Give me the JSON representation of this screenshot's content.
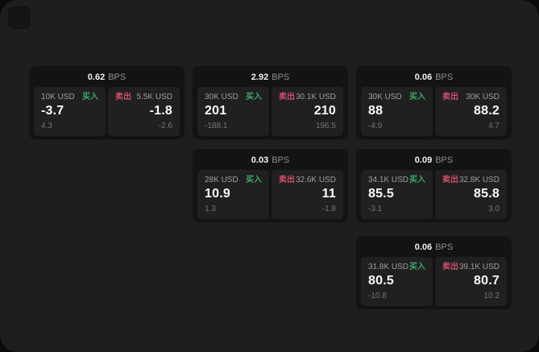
{
  "theme": {
    "outer_background": "#0b0b0b",
    "page_background": "#1e1e1e",
    "card_background": "#131313",
    "tile_background": "#202020",
    "buy_color": "#3fa868",
    "sell_color": "#cf506b",
    "value_color": "#fafafa",
    "muted_text": "#9e9e9e"
  },
  "labels": {
    "bps": "BPS",
    "buy": "买入",
    "sell": "卖出"
  },
  "cards": [
    {
      "spread_bps": "0.62",
      "buy": {
        "size": "10K USD",
        "price": "-3.7",
        "delta": "4.3"
      },
      "sell": {
        "size": "5.5K USD",
        "price": "-1.8",
        "delta": "-2.6"
      }
    },
    {
      "spread_bps": "2.92",
      "buy": {
        "size": "30K USD",
        "price": "201",
        "delta": "-188.1"
      },
      "sell": {
        "size": "30.1K USD",
        "price": "210",
        "delta": "196.5"
      }
    },
    {
      "spread_bps": "0.06",
      "buy": {
        "size": "30K USD",
        "price": "88",
        "delta": "-4.9"
      },
      "sell": {
        "size": "30K USD",
        "price": "88.2",
        "delta": "4.7"
      }
    },
    {
      "spread_bps": "0.03",
      "buy": {
        "size": "28K USD",
        "price": "10.9",
        "delta": "1.3"
      },
      "sell": {
        "size": "32.6K USD",
        "price": "11",
        "delta": "-1.8"
      }
    },
    {
      "spread_bps": "0.09",
      "buy": {
        "size": "34.1K USD",
        "price": "85.5",
        "delta": "-3.1"
      },
      "sell": {
        "size": "32.8K USD",
        "price": "85.8",
        "delta": "3.0"
      }
    },
    {
      "spread_bps": "0.06",
      "buy": {
        "size": "31.8K USD",
        "price": "80.5",
        "delta": "-10.8"
      },
      "sell": {
        "size": "39.1K USD",
        "price": "80.7",
        "delta": "10.2"
      }
    }
  ]
}
